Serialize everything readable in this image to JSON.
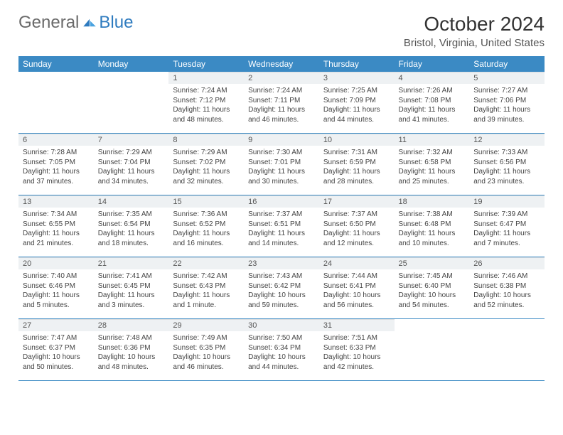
{
  "logo": {
    "part1": "General",
    "part2": "Blue"
  },
  "title": "October 2024",
  "location": "Bristol, Virginia, United States",
  "colors": {
    "header_bg": "#3b8ac4",
    "header_text": "#ffffff",
    "daynum_bg": "#eef1f3",
    "border": "#3b8ac4",
    "text": "#444444",
    "logo_blue": "#2e7bbf"
  },
  "weekdays": [
    "Sunday",
    "Monday",
    "Tuesday",
    "Wednesday",
    "Thursday",
    "Friday",
    "Saturday"
  ],
  "weeks": [
    [
      null,
      null,
      {
        "n": "1",
        "sr": "7:24 AM",
        "ss": "7:12 PM",
        "dl": "11 hours and 48 minutes."
      },
      {
        "n": "2",
        "sr": "7:24 AM",
        "ss": "7:11 PM",
        "dl": "11 hours and 46 minutes."
      },
      {
        "n": "3",
        "sr": "7:25 AM",
        "ss": "7:09 PM",
        "dl": "11 hours and 44 minutes."
      },
      {
        "n": "4",
        "sr": "7:26 AM",
        "ss": "7:08 PM",
        "dl": "11 hours and 41 minutes."
      },
      {
        "n": "5",
        "sr": "7:27 AM",
        "ss": "7:06 PM",
        "dl": "11 hours and 39 minutes."
      }
    ],
    [
      {
        "n": "6",
        "sr": "7:28 AM",
        "ss": "7:05 PM",
        "dl": "11 hours and 37 minutes."
      },
      {
        "n": "7",
        "sr": "7:29 AM",
        "ss": "7:04 PM",
        "dl": "11 hours and 34 minutes."
      },
      {
        "n": "8",
        "sr": "7:29 AM",
        "ss": "7:02 PM",
        "dl": "11 hours and 32 minutes."
      },
      {
        "n": "9",
        "sr": "7:30 AM",
        "ss": "7:01 PM",
        "dl": "11 hours and 30 minutes."
      },
      {
        "n": "10",
        "sr": "7:31 AM",
        "ss": "6:59 PM",
        "dl": "11 hours and 28 minutes."
      },
      {
        "n": "11",
        "sr": "7:32 AM",
        "ss": "6:58 PM",
        "dl": "11 hours and 25 minutes."
      },
      {
        "n": "12",
        "sr": "7:33 AM",
        "ss": "6:56 PM",
        "dl": "11 hours and 23 minutes."
      }
    ],
    [
      {
        "n": "13",
        "sr": "7:34 AM",
        "ss": "6:55 PM",
        "dl": "11 hours and 21 minutes."
      },
      {
        "n": "14",
        "sr": "7:35 AM",
        "ss": "6:54 PM",
        "dl": "11 hours and 18 minutes."
      },
      {
        "n": "15",
        "sr": "7:36 AM",
        "ss": "6:52 PM",
        "dl": "11 hours and 16 minutes."
      },
      {
        "n": "16",
        "sr": "7:37 AM",
        "ss": "6:51 PM",
        "dl": "11 hours and 14 minutes."
      },
      {
        "n": "17",
        "sr": "7:37 AM",
        "ss": "6:50 PM",
        "dl": "11 hours and 12 minutes."
      },
      {
        "n": "18",
        "sr": "7:38 AM",
        "ss": "6:48 PM",
        "dl": "11 hours and 10 minutes."
      },
      {
        "n": "19",
        "sr": "7:39 AM",
        "ss": "6:47 PM",
        "dl": "11 hours and 7 minutes."
      }
    ],
    [
      {
        "n": "20",
        "sr": "7:40 AM",
        "ss": "6:46 PM",
        "dl": "11 hours and 5 minutes."
      },
      {
        "n": "21",
        "sr": "7:41 AM",
        "ss": "6:45 PM",
        "dl": "11 hours and 3 minutes."
      },
      {
        "n": "22",
        "sr": "7:42 AM",
        "ss": "6:43 PM",
        "dl": "11 hours and 1 minute."
      },
      {
        "n": "23",
        "sr": "7:43 AM",
        "ss": "6:42 PM",
        "dl": "10 hours and 59 minutes."
      },
      {
        "n": "24",
        "sr": "7:44 AM",
        "ss": "6:41 PM",
        "dl": "10 hours and 56 minutes."
      },
      {
        "n": "25",
        "sr": "7:45 AM",
        "ss": "6:40 PM",
        "dl": "10 hours and 54 minutes."
      },
      {
        "n": "26",
        "sr": "7:46 AM",
        "ss": "6:38 PM",
        "dl": "10 hours and 52 minutes."
      }
    ],
    [
      {
        "n": "27",
        "sr": "7:47 AM",
        "ss": "6:37 PM",
        "dl": "10 hours and 50 minutes."
      },
      {
        "n": "28",
        "sr": "7:48 AM",
        "ss": "6:36 PM",
        "dl": "10 hours and 48 minutes."
      },
      {
        "n": "29",
        "sr": "7:49 AM",
        "ss": "6:35 PM",
        "dl": "10 hours and 46 minutes."
      },
      {
        "n": "30",
        "sr": "7:50 AM",
        "ss": "6:34 PM",
        "dl": "10 hours and 44 minutes."
      },
      {
        "n": "31",
        "sr": "7:51 AM",
        "ss": "6:33 PM",
        "dl": "10 hours and 42 minutes."
      },
      null,
      null
    ]
  ],
  "labels": {
    "sunrise": "Sunrise: ",
    "sunset": "Sunset: ",
    "daylight": "Daylight: "
  }
}
